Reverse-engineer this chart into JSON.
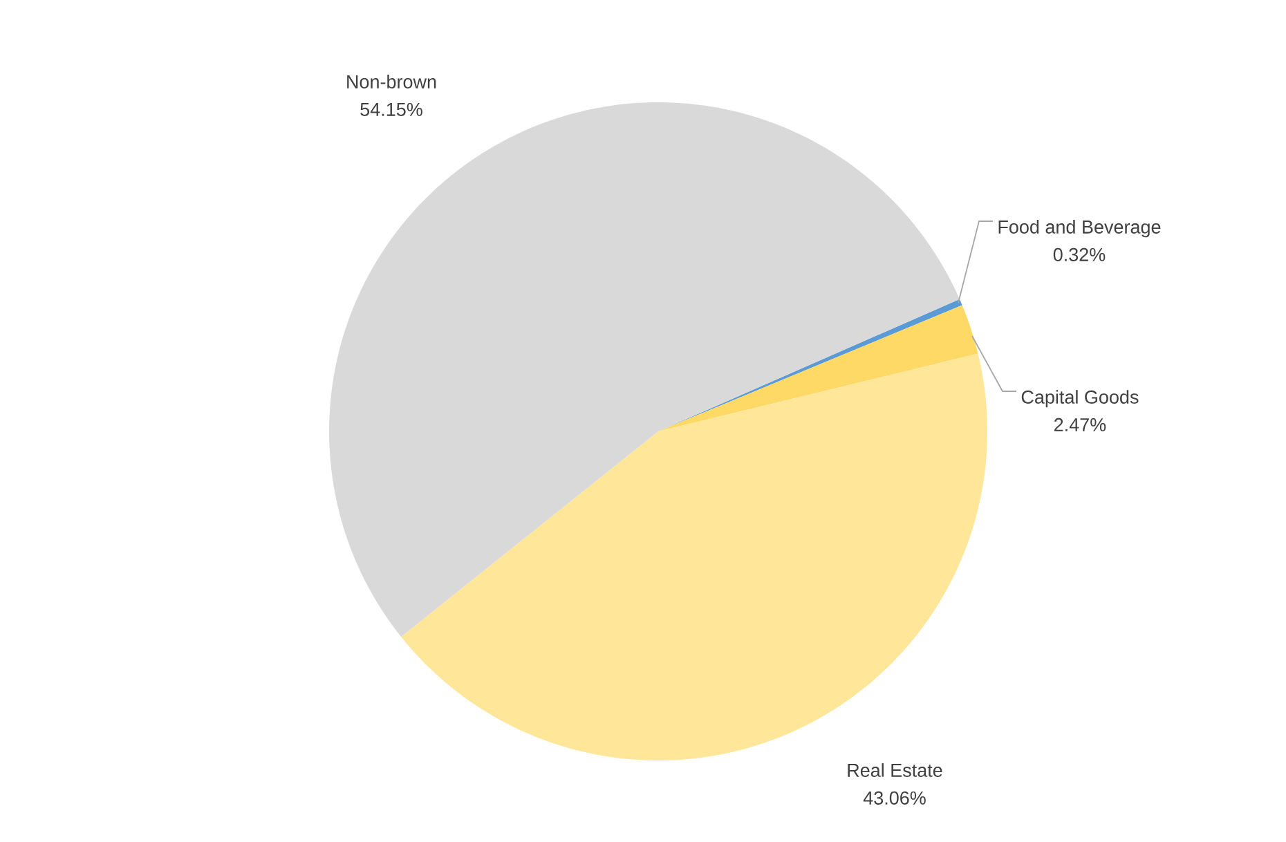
{
  "chart_data": {
    "type": "pie",
    "categories": [
      "Food and Beverage",
      "Capital Goods",
      "Real Estate",
      "Non-brown"
    ],
    "values": [
      0.32,
      2.47,
      43.06,
      54.15
    ],
    "colors": [
      "#5b9bd5",
      "#ffd966",
      "#ffe699",
      "#d9d9d9"
    ],
    "value_labels": [
      "0.32%",
      "2.47%",
      "43.06%",
      "54.15%"
    ]
  }
}
